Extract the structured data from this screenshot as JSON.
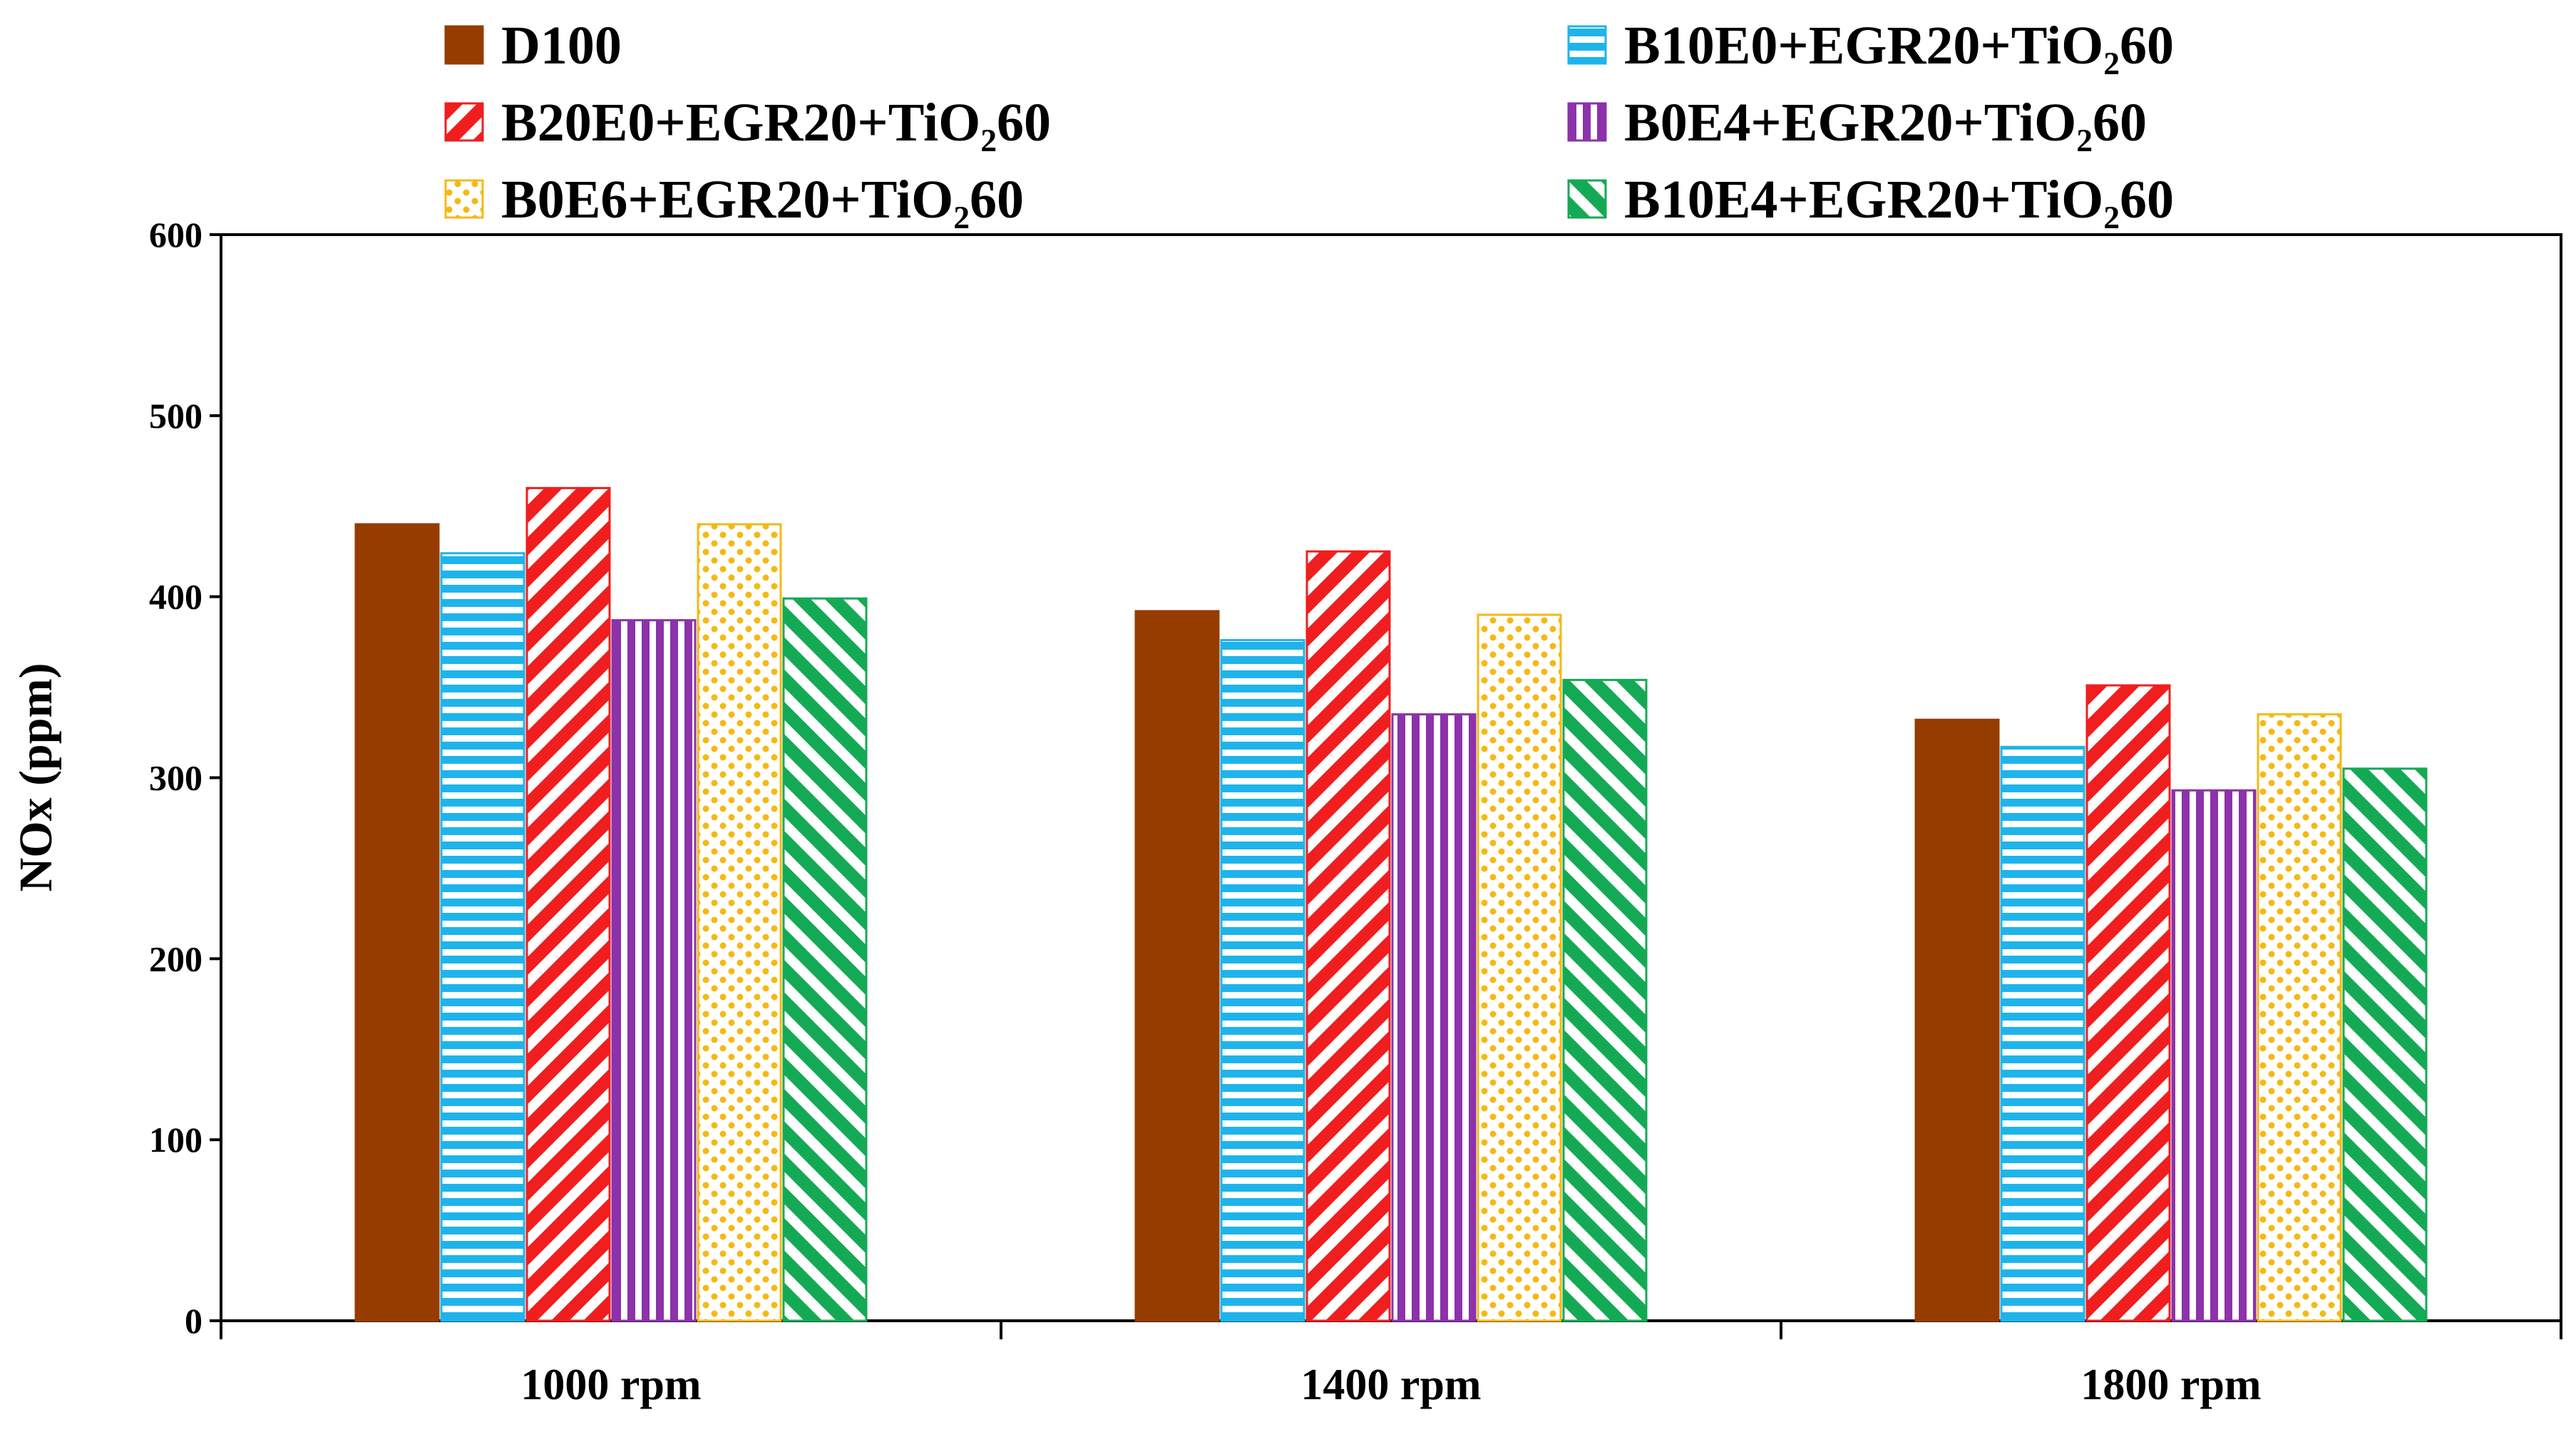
{
  "chart_data": {
    "type": "bar",
    "title": "",
    "xlabel": "",
    "ylabel": "NOx (ppm)",
    "ylim": [
      0,
      600
    ],
    "yticks": [
      "0",
      "100",
      "200",
      "300",
      "400",
      "500",
      "600"
    ],
    "categories": [
      "1000 rpm",
      "1400 rpm",
      "1800 rpm"
    ],
    "legend_position": "top",
    "series": [
      {
        "name": "D100",
        "values": [
          440,
          392,
          332
        ],
        "color": "#963C00",
        "pattern": "solid"
      },
      {
        "name": "B10E0+EGR20+TiO₂60",
        "values": [
          424,
          376,
          317
        ],
        "color": "#1EB4EB",
        "pattern": "horizontal-stripes"
      },
      {
        "name": "B20E0+EGR20+TiO₂60",
        "values": [
          460,
          425,
          351
        ],
        "color": "#F01E1E",
        "pattern": "diagonal-up-stripes"
      },
      {
        "name": "B0E4+EGR20+TiO₂60",
        "values": [
          387,
          335,
          293
        ],
        "color": "#8C32AA",
        "pattern": "vertical-stripes"
      },
      {
        "name": "B0E6+EGR20+TiO₂60",
        "values": [
          440,
          390,
          335
        ],
        "color": "#F5B914",
        "pattern": "dots"
      },
      {
        "name": "B10E4+EGR20+TiO₂60",
        "values": [
          399,
          354,
          305
        ],
        "color": "#14AA55",
        "pattern": "diagonal-down-stripes"
      }
    ]
  }
}
